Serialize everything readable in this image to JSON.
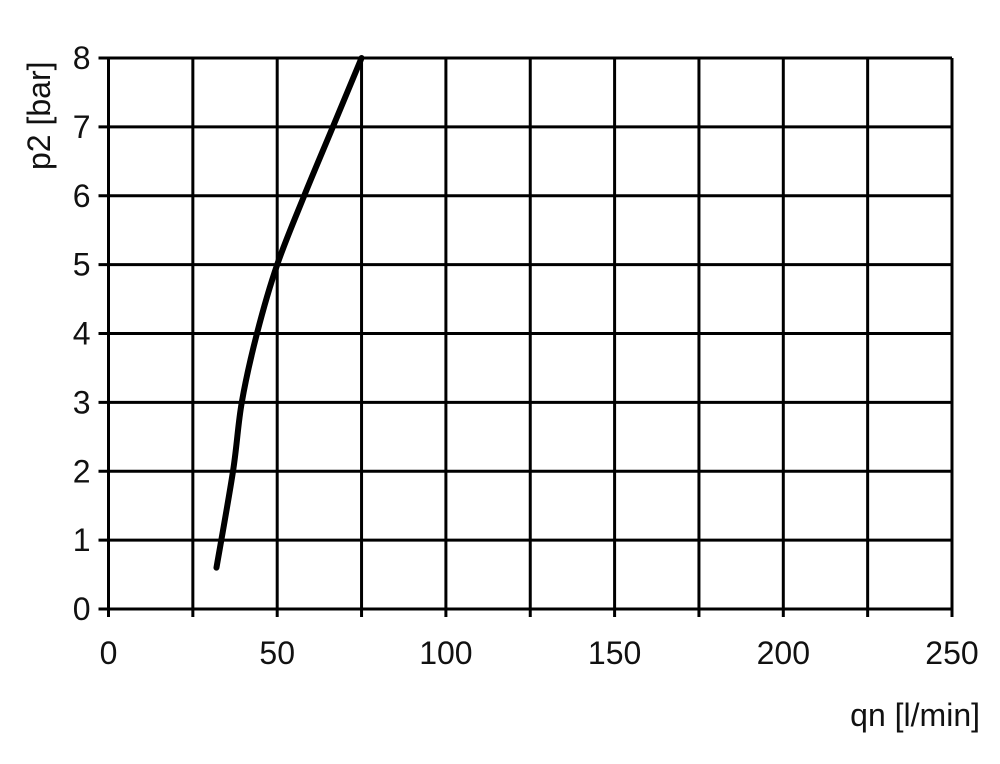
{
  "chart_data": {
    "type": "line",
    "title": "",
    "xlabel": "qn [l/min]",
    "ylabel": "p2 [bar]",
    "xlim": [
      0,
      250
    ],
    "ylim": [
      0,
      8
    ],
    "x_ticks": [
      0,
      50,
      100,
      150,
      200,
      250
    ],
    "x_ticks_labels": [
      "0",
      "50",
      "100",
      "150",
      "200",
      "250"
    ],
    "x_grid_step": 25,
    "y_ticks": [
      0,
      1,
      2,
      3,
      4,
      5,
      6,
      7,
      8
    ],
    "y_ticks_labels": [
      "0",
      "1",
      "2",
      "3",
      "4",
      "5",
      "6",
      "7",
      "8"
    ],
    "grid": true,
    "legend": "none",
    "series": [
      {
        "color": "#000000",
        "x": [
          32,
          36.9,
          39.5,
          44,
          50,
          58,
          66.5,
          75
        ],
        "y": [
          0.6,
          2,
          3,
          4,
          5,
          6,
          7,
          8
        ]
      }
    ]
  }
}
